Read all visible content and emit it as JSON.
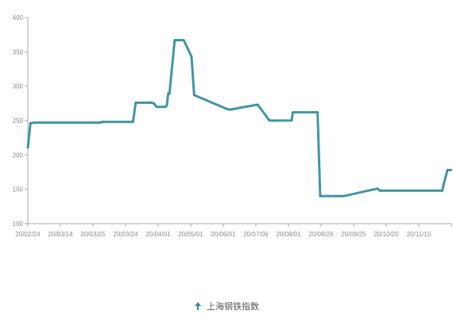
{
  "chart_data": {
    "type": "line",
    "color": "#2E8B99",
    "ylim": [
      100,
      400
    ],
    "yticks": [
      100,
      150,
      200,
      250,
      300,
      350,
      400
    ],
    "ytick_labels": [
      "100",
      "150",
      "200",
      "250",
      "300",
      "350",
      "400"
    ],
    "xtick_labels": [
      "20/02/24",
      "20/03/14",
      "20/03/25",
      "20/03/24",
      "20/04/01",
      "20/05/01",
      "20/06/01",
      "20/07/06",
      "20/08/01",
      "20/08/26",
      "20/09/25",
      "20/10/20",
      "20/11/15"
    ],
    "grid": false,
    "legend_position": "bottom",
    "series": [
      {
        "name": "上海钢铁指数",
        "x": [
          0.0,
          0.2,
          0.5,
          5.6,
          5.7,
          5.8,
          8.1,
          8.3,
          9.4,
          9.5,
          9.7,
          9.9,
          10.6,
          10.7,
          10.8,
          10.9,
          11.3,
          11.4,
          11.6,
          12.0,
          12.6,
          12.8,
          15.3,
          15.5,
          15.6,
          17.6,
          17.7,
          18.6,
          18.9,
          20.3,
          20.4,
          22.3,
          22.5,
          23.2,
          24.1,
          24.3,
          26.9,
          27.1,
          27.2,
          31.9,
          32.0,
          32.3,
          32.5,
          32.6
        ],
        "y": [
          210,
          246,
          247,
          247,
          248,
          248,
          248,
          276,
          276,
          276,
          275,
          270,
          270,
          272,
          289,
          289,
          367,
          367,
          367,
          367,
          343,
          287,
          267,
          266,
          266,
          273,
          273,
          250,
          250,
          250,
          262,
          262,
          140,
          140,
          140,
          140,
          151,
          148,
          148,
          148,
          157,
          178,
          178,
          178
        ]
      }
    ]
  },
  "legend": {
    "label": "上海钢铁指数"
  }
}
